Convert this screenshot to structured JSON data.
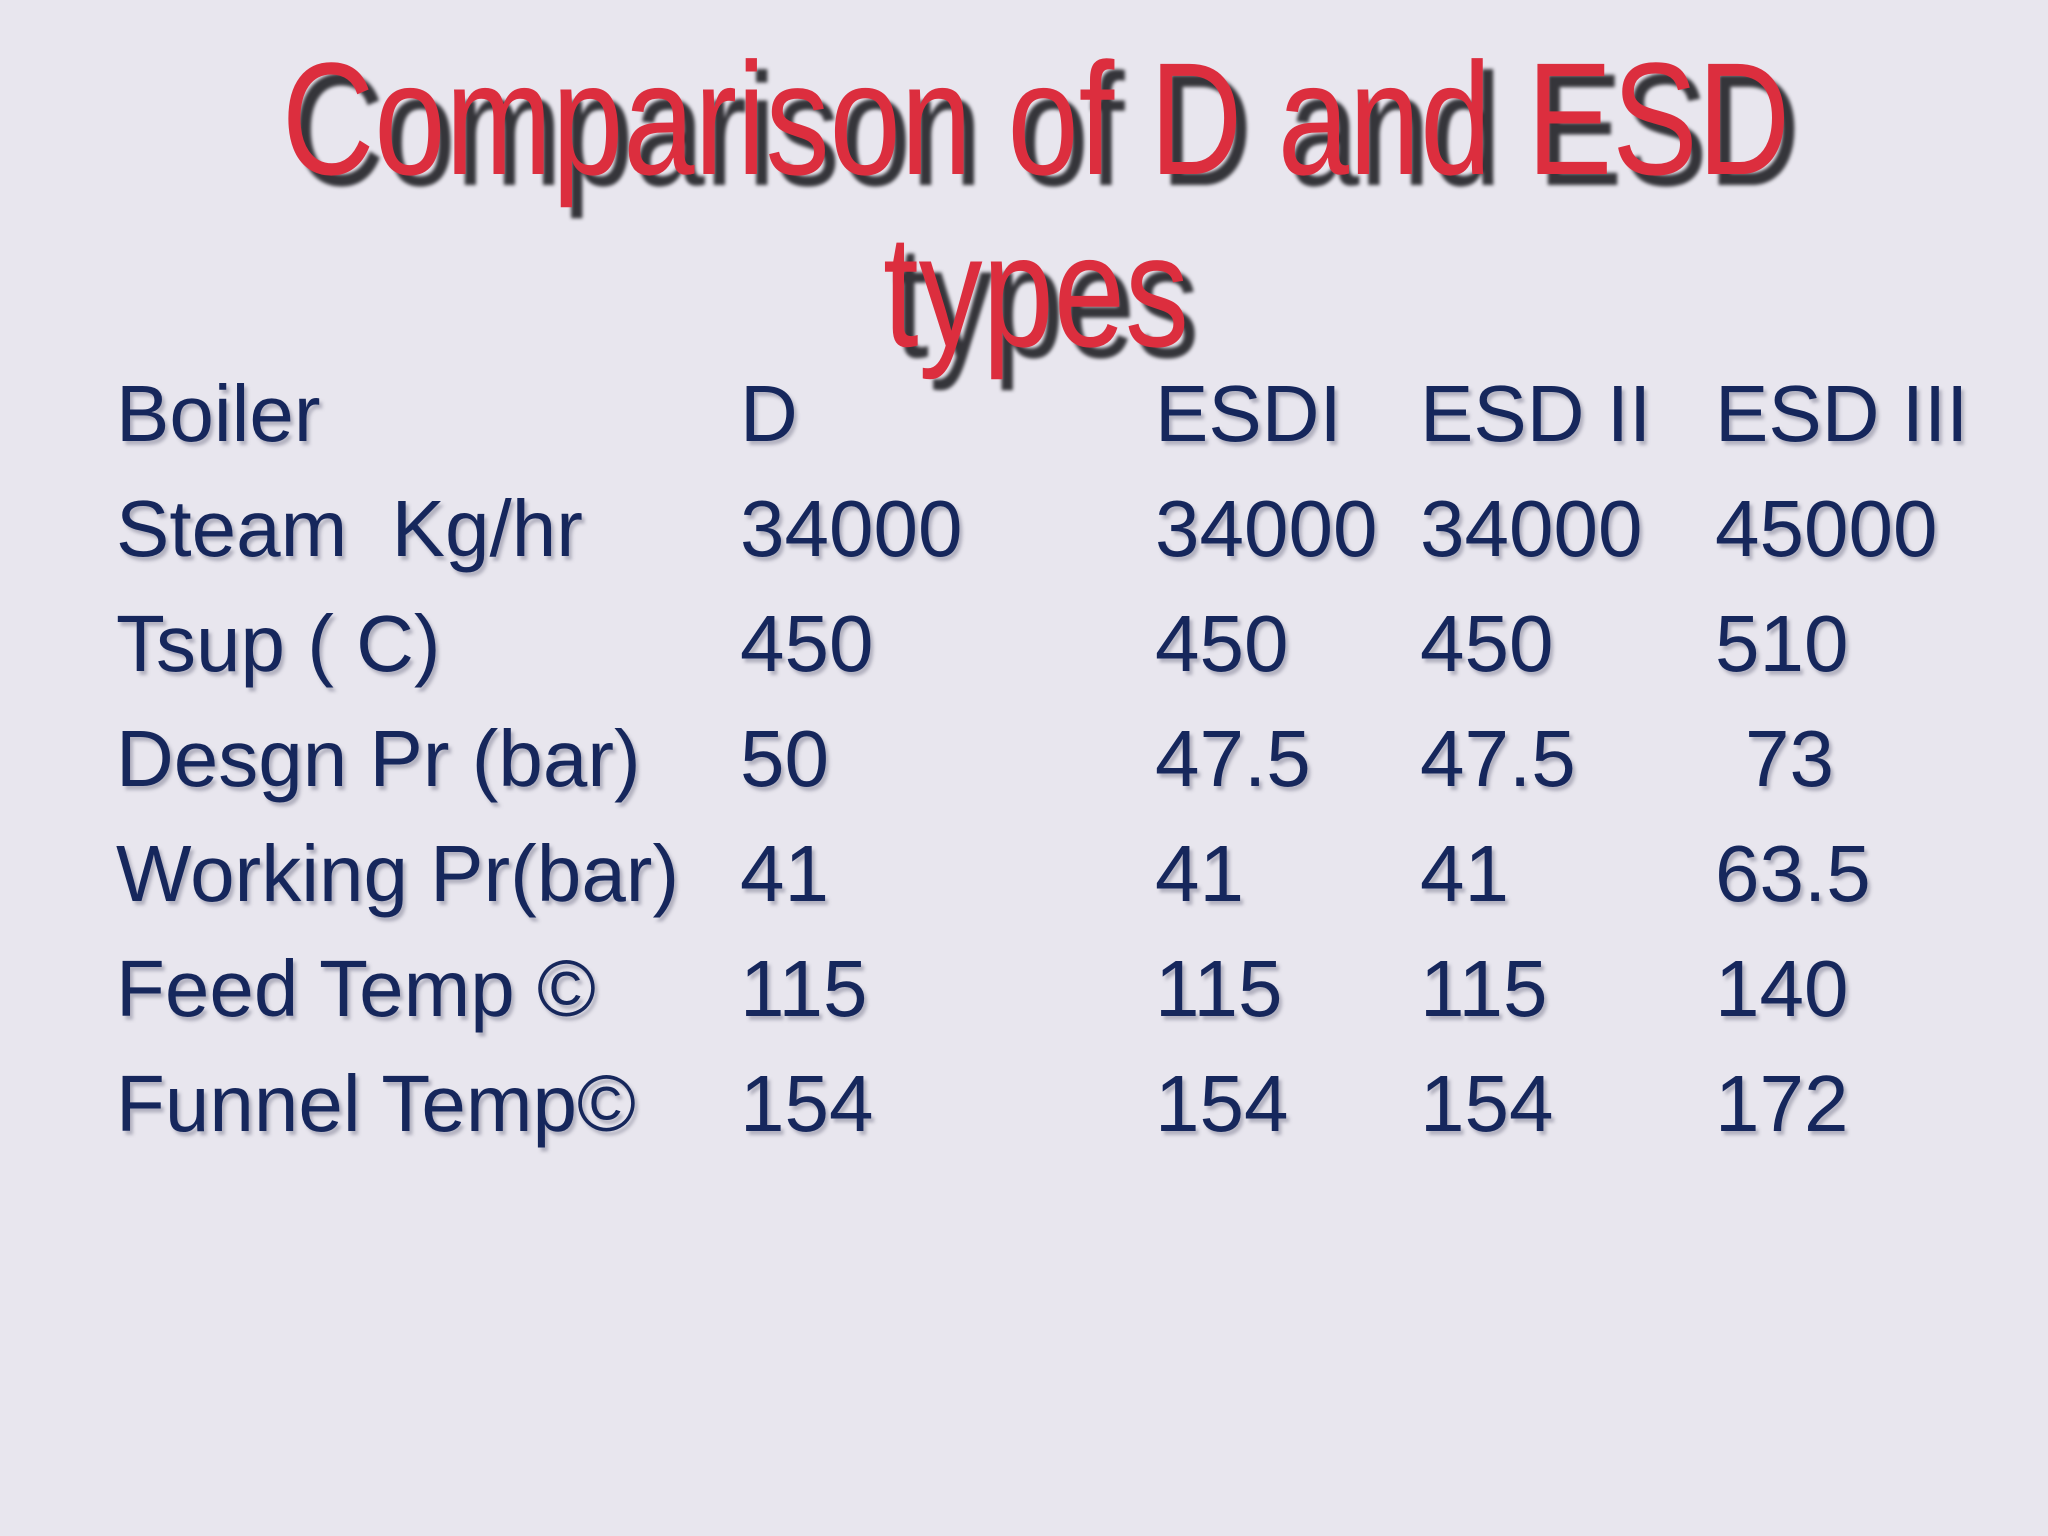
{
  "slide": {
    "title": {
      "line1": "Comparison of D and ESD",
      "line2": "types"
    },
    "colors": {
      "background": "#e8e6ee",
      "title_red": "#dc2e3e",
      "title_shadow": "#35353a",
      "body_navy": "#16275c"
    }
  },
  "table": {
    "header": [
      "Boiler",
      "D",
      "ESDI",
      "ESD II",
      "ESD III"
    ],
    "rows": [
      {
        "label": "Steam  Kg/hr",
        "values": [
          "34000",
          "34000",
          "34000",
          "45000"
        ]
      },
      {
        "label": "Tsup ( C)",
        "values": [
          "450",
          "450",
          "450",
          "510"
        ]
      },
      {
        "label": "Desgn Pr (bar)",
        "values": [
          "50",
          "47.5",
          "47.5",
          "73"
        ]
      },
      {
        "label": "Working Pr(bar)",
        "values": [
          "41",
          "41",
          "41",
          "63.5"
        ]
      },
      {
        "label": "Feed Temp ©",
        "values": [
          "115",
          "115",
          "115",
          "140"
        ]
      },
      {
        "label": "Funnel Temp©",
        "values": [
          "154",
          "154",
          "154",
          "172"
        ]
      }
    ]
  }
}
